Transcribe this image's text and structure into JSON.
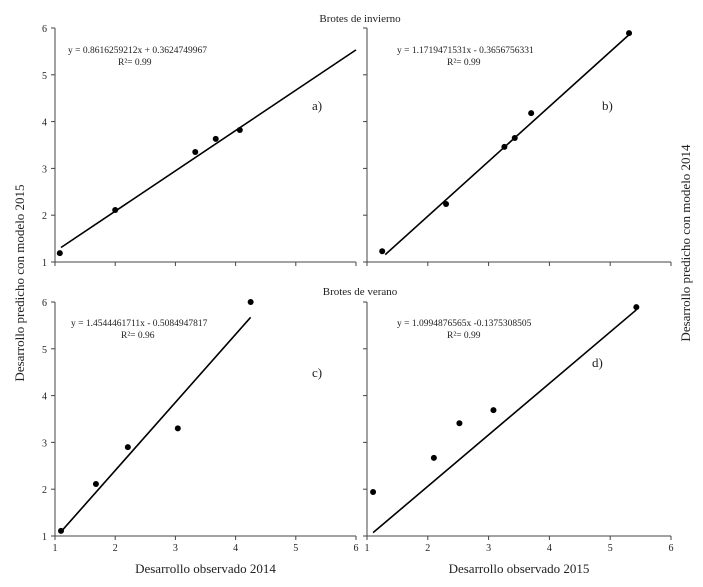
{
  "titles": {
    "top": "Brotes de invierno",
    "bottom": "Brotes de verano"
  },
  "ylabel_left": "Desarrollo predicho con modelo 2015",
  "ylabel_right": "Desarrollo predicho con modelo 2014",
  "chart_data": [
    {
      "type": "scatter",
      "panel": "a)",
      "xlabel": "",
      "xlim": [
        1,
        6
      ],
      "ylim": [
        1,
        6
      ],
      "equation": "y = 0.8616259212x + 0.3624749967",
      "r2": "R²= 0.99",
      "slope": 0.8616259212,
      "intercept": 0.3624749967,
      "fit_x": [
        1.1,
        6
      ],
      "x": [
        1.08,
        2.0,
        3.33,
        3.67,
        4.07
      ],
      "y": [
        1.19,
        2.11,
        3.35,
        3.63,
        3.82
      ]
    },
    {
      "type": "scatter",
      "panel": "b)",
      "xlabel": "",
      "xlim": [
        1,
        6
      ],
      "ylim": [
        1,
        6
      ],
      "equation": "y = 1.1719471531x - 0.3656756331",
      "r2": "R²= 0.99",
      "slope": 1.1719471531,
      "intercept": -0.3656756331,
      "fit_x": [
        1.3,
        5.3
      ],
      "x": [
        1.25,
        2.3,
        3.26,
        3.43,
        3.7,
        5.31
      ],
      "y": [
        1.23,
        2.24,
        3.46,
        3.65,
        4.18,
        5.89
      ]
    },
    {
      "type": "scatter",
      "panel": "c)",
      "xlabel": "Desarrollo observado 2014",
      "xlim": [
        1,
        6
      ],
      "ylim": [
        1,
        6
      ],
      "equation": "y = 1.4544461711x - 0.5084947817",
      "r2": "R²= 0.96",
      "slope": 1.4544461711,
      "intercept": -0.5084947817,
      "fit_x": [
        1.13,
        4.25
      ],
      "x": [
        1.1,
        1.68,
        2.21,
        3.04,
        4.25
      ],
      "y": [
        1.11,
        2.11,
        2.9,
        3.3,
        6.0
      ]
    },
    {
      "type": "scatter",
      "panel": "d)",
      "xlabel": "Desarrollo observado 2015",
      "xlim": [
        1,
        6
      ],
      "ylim": [
        1,
        6
      ],
      "equation": "y = 1.0994876565x -0.1375308505",
      "r2": "R²= 0.99",
      "slope": 1.0994876565,
      "intercept": -0.1375308505,
      "fit_x": [
        1.1,
        5.43
      ],
      "x": [
        1.1,
        2.1,
        2.52,
        3.08,
        5.43
      ],
      "y": [
        1.94,
        2.67,
        3.41,
        3.69,
        5.89
      ]
    }
  ],
  "ticks": [
    "1",
    "2",
    "3",
    "4",
    "5",
    "6"
  ]
}
